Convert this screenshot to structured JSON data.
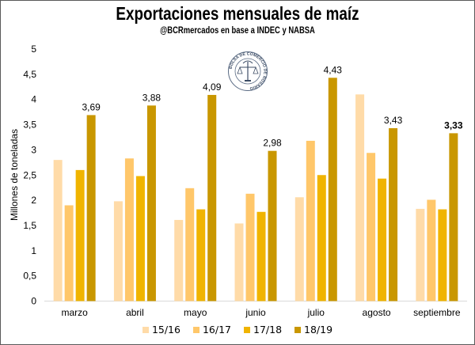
{
  "chart_data": {
    "type": "bar",
    "title": "Exportaciones mensuales de maíz",
    "subtitle": "@BCRmercados en base a INDEC y NABSA",
    "xlabel": "",
    "ylabel": "Millones de toneladas",
    "ylim": [
      0,
      5
    ],
    "yticks": [
      "0",
      "0,5",
      "1",
      "1,5",
      "2",
      "2,5",
      "3",
      "3,5",
      "4",
      "4,5",
      "5"
    ],
    "yticks_values": [
      0,
      0.5,
      1,
      1.5,
      2,
      2.5,
      3,
      3.5,
      4,
      4.5,
      5
    ],
    "grid": false,
    "legend_position": "bottom",
    "categories": [
      "marzo",
      "abril",
      "mayo",
      "junio",
      "julio",
      "agosto",
      "septiembre"
    ],
    "series": [
      {
        "name": "15/16",
        "color": "#FFDBA8",
        "values": [
          2.8,
          1.98,
          1.61,
          1.54,
          2.06,
          4.1,
          1.83
        ]
      },
      {
        "name": "16/17",
        "color": "#FFC76A",
        "values": [
          1.9,
          2.83,
          2.24,
          2.13,
          3.18,
          2.94,
          2.01
        ]
      },
      {
        "name": "17/18",
        "color": "#F0B400",
        "values": [
          2.6,
          2.48,
          1.82,
          1.77,
          2.5,
          2.43,
          1.82
        ]
      },
      {
        "name": "18/19",
        "color": "#C99700",
        "values": [
          3.69,
          3.88,
          4.09,
          2.98,
          4.43,
          3.43,
          3.33
        ]
      }
    ],
    "data_labels": {
      "series": "18/19",
      "labels": [
        "3,69",
        "3,88",
        "4,09",
        "2,98",
        "4,43",
        "3,43",
        "3,33"
      ],
      "bold_index": 6
    }
  },
  "logo": {
    "name": "Bolsa de Comercio de Rosario seal",
    "text": "BOLSA DE COMERCIO DE ROSARIO"
  }
}
